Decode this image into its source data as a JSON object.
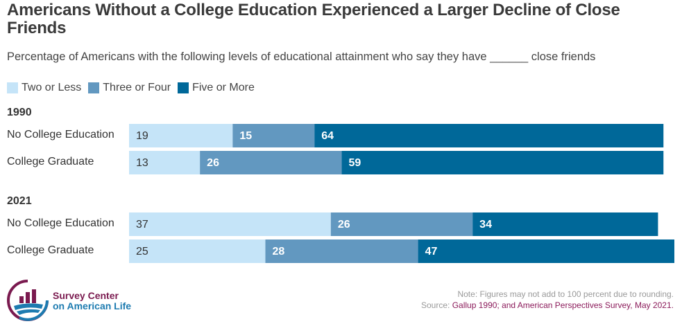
{
  "chart_data": {
    "type": "bar",
    "orientation": "horizontal-stacked",
    "title": "Americans Without a College Education Experienced a Larger Decline of Close Friends",
    "subtitle": "Percentage of Americans with the following levels of educational attainment who say they have ______ close friends",
    "legend": [
      {
        "name": "Two or Less",
        "color": "#c5e4f8"
      },
      {
        "name": "Three or Four",
        "color": "#6298c0"
      },
      {
        "name": "Five or More",
        "color": "#006899"
      }
    ],
    "legend_placement": "top-left",
    "xlim": [
      0,
      100
    ],
    "groups": [
      {
        "year": "1990",
        "rows": [
          {
            "label": "No College Education",
            "values": [
              19,
              15,
              64
            ]
          },
          {
            "label": "College Graduate",
            "values": [
              13,
              26,
              59
            ]
          }
        ]
      },
      {
        "year": "2021",
        "rows": [
          {
            "label": "No College Education",
            "values": [
              37,
              26,
              34
            ]
          },
          {
            "label": "College Graduate",
            "values": [
              25,
              28,
              47
            ]
          }
        ]
      }
    ],
    "label_colors": [
      "#333333",
      "#ffffff",
      "#ffffff"
    ]
  },
  "footer": {
    "note": "Note: Figures may not add to 100 percent due to rounding.",
    "source_label": "Source: ",
    "source_text": "Gallup 1990; and American Perspectives Survey, May 2021."
  },
  "logo": {
    "line1": "Survey Center",
    "line2": "on American Life",
    "colors": {
      "maroon": "#7a1a4f",
      "blue": "#1d7bb0"
    }
  }
}
